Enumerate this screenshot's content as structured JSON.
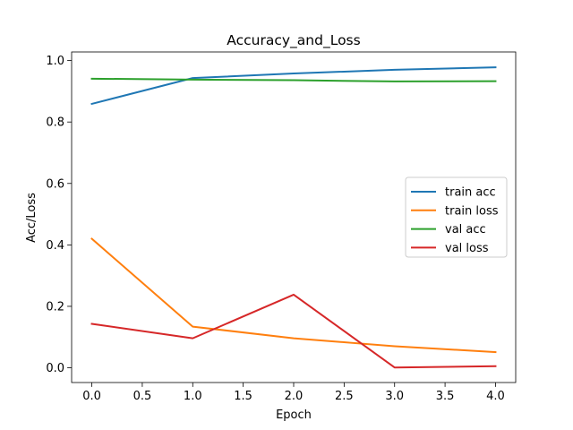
{
  "chart_data": {
    "type": "line",
    "title": "Accuracy_and_Loss",
    "xlabel": "Epoch",
    "ylabel": "Acc/Loss",
    "x": [
      0,
      1,
      2,
      3,
      4
    ],
    "xlim": [
      -0.2,
      4.2
    ],
    "ylim": [
      -0.048,
      1.028
    ],
    "xticks": [
      0.0,
      0.5,
      1.0,
      1.5,
      2.0,
      2.5,
      3.0,
      3.5,
      4.0
    ],
    "xtick_labels": [
      "0.0",
      "0.5",
      "1.0",
      "1.5",
      "2.0",
      "2.5",
      "3.0",
      "3.5",
      "4.0"
    ],
    "yticks": [
      0.0,
      0.2,
      0.4,
      0.6,
      0.8,
      1.0
    ],
    "ytick_labels": [
      "0.0",
      "0.2",
      "0.4",
      "0.6",
      "0.8",
      "1.0"
    ],
    "grid": false,
    "legend_position": "center-right",
    "series": [
      {
        "name": "train acc",
        "color": "#1f77b4",
        "values": [
          0.859,
          0.943,
          0.958,
          0.97,
          0.978
        ]
      },
      {
        "name": "train loss",
        "color": "#ff7f0e",
        "values": [
          0.42,
          0.134,
          0.096,
          0.07,
          0.051
        ]
      },
      {
        "name": "val acc",
        "color": "#2ca02c",
        "values": [
          0.941,
          0.938,
          0.936,
          0.932,
          0.933
        ]
      },
      {
        "name": "val loss",
        "color": "#d62728",
        "values": [
          0.143,
          0.096,
          0.238,
          0.001,
          0.005
        ]
      }
    ]
  }
}
